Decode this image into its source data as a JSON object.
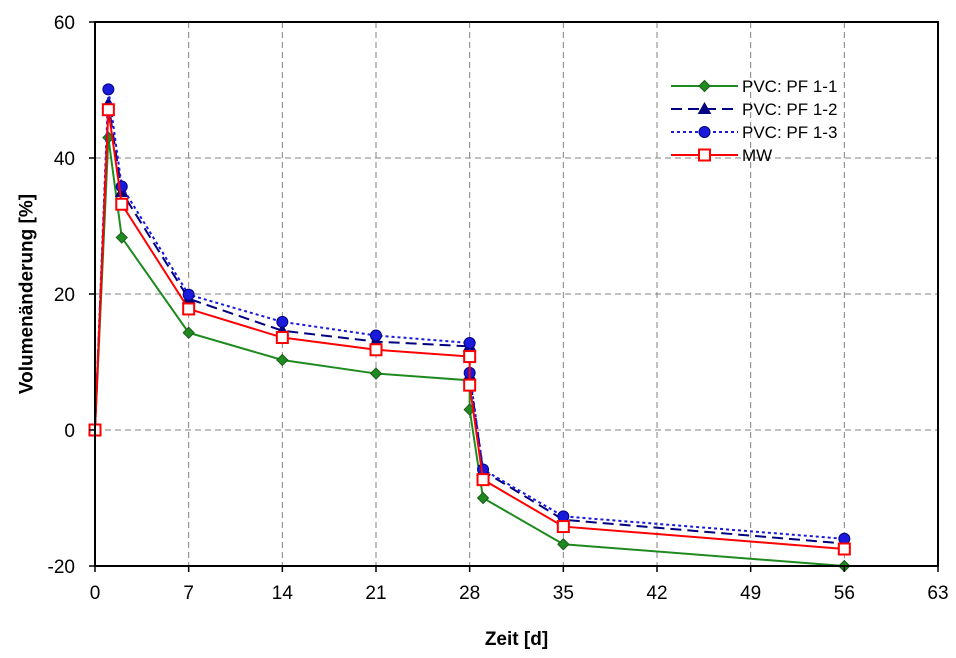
{
  "chart_data": {
    "type": "line",
    "xlabel": "Zeit [d]",
    "ylabel": "Volumenänderung [%]",
    "xlim": [
      0,
      63
    ],
    "ylim": [
      -20,
      60
    ],
    "xticks": [
      0,
      7,
      14,
      21,
      28,
      35,
      42,
      49,
      56,
      63
    ],
    "yticks": [
      -20,
      0,
      20,
      40,
      60
    ],
    "grid": true,
    "legend_position": "top-right",
    "series": [
      {
        "name": "PVC: PF 1-1",
        "color": "#1f8a1f",
        "line_style": "solid",
        "marker": "diamond",
        "x": [
          0,
          1,
          2,
          7,
          14,
          21,
          28,
          28,
          29,
          35,
          56
        ],
        "y": [
          0,
          43.0,
          28.3,
          14.3,
          10.3,
          8.3,
          7.3,
          3.0,
          -10.0,
          -16.8,
          -20.0
        ]
      },
      {
        "name": "PVC: PF 1-2",
        "color": "#000080",
        "line_style": "dashed",
        "marker": "triangle",
        "x": [
          0,
          1,
          2,
          7,
          14,
          21,
          28,
          28,
          29,
          35,
          56
        ],
        "y": [
          0,
          48.0,
          35.0,
          19.3,
          14.6,
          13.0,
          12.3,
          8.0,
          -6.0,
          -13.2,
          -16.7
        ]
      },
      {
        "name": "PVC: PF 1-3",
        "color": "#1a1adc",
        "line_style": "dotted",
        "marker": "circle",
        "x": [
          0,
          1,
          2,
          7,
          14,
          21,
          28,
          28,
          29,
          35,
          56
        ],
        "y": [
          0,
          50.1,
          35.8,
          19.9,
          15.9,
          13.9,
          12.8,
          8.4,
          -5.8,
          -12.7,
          -16.0
        ]
      },
      {
        "name": "MW",
        "color": "#ff0000",
        "line_style": "solid",
        "marker": "open-square",
        "x": [
          0,
          1,
          2,
          7,
          14,
          21,
          28,
          28,
          29,
          35,
          56
        ],
        "y": [
          0,
          47.1,
          33.2,
          17.8,
          13.6,
          11.8,
          10.8,
          6.6,
          -7.3,
          -14.2,
          -17.5
        ]
      }
    ]
  }
}
